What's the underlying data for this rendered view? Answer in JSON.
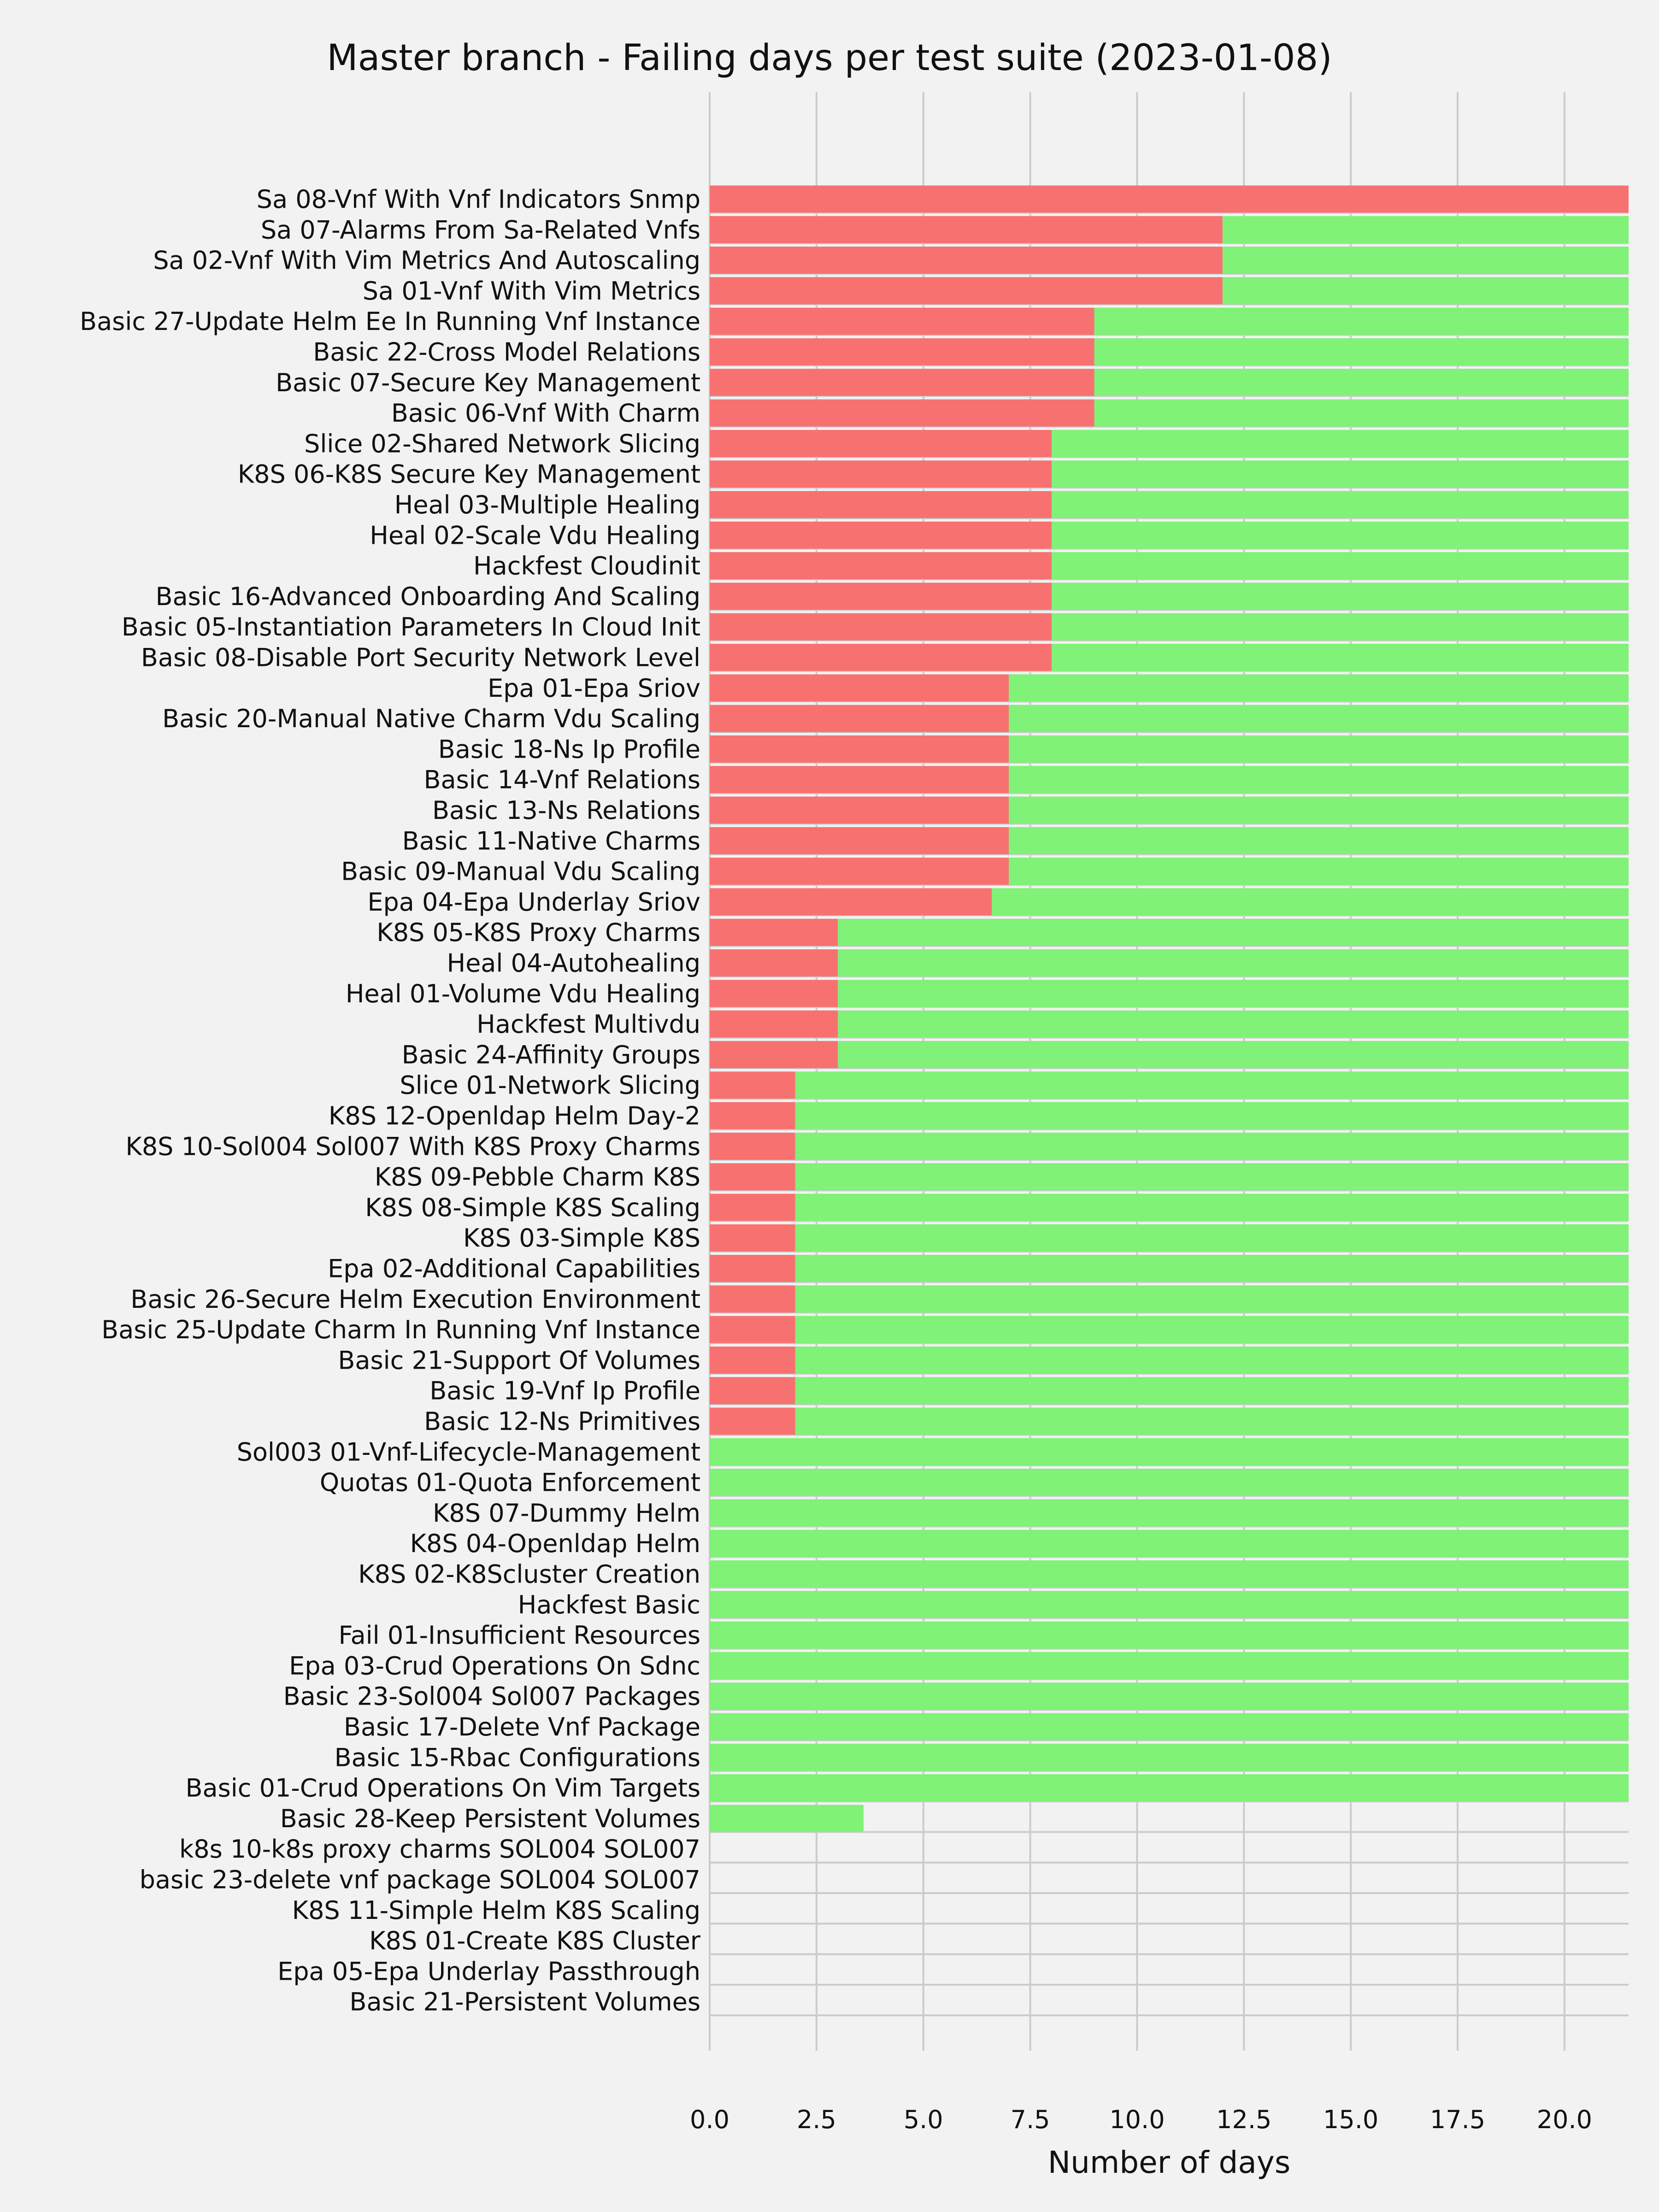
{
  "chart_data": {
    "type": "bar",
    "orientation": "horizontal",
    "stacked": true,
    "title": "Master branch - Failing days per test suite (2023-01-08)",
    "xlabel": "Number of days",
    "ylabel": "",
    "xlim": [
      0,
      21.5
    ],
    "xticks": [
      "0.0",
      "2.5",
      "5.0",
      "7.5",
      "10.0",
      "12.5",
      "15.0",
      "17.5",
      "20.0"
    ],
    "grid": "vertical",
    "categories": [
      "Sa 08-Vnf With Vnf Indicators Snmp",
      "Sa 07-Alarms From Sa-Related Vnfs",
      "Sa 02-Vnf With Vim Metrics And Autoscaling",
      "Sa 01-Vnf With Vim Metrics",
      "Basic 27-Update Helm Ee In Running Vnf Instance",
      "Basic 22-Cross Model Relations",
      "Basic 07-Secure Key Management",
      "Basic 06-Vnf With Charm",
      "Slice 02-Shared Network Slicing",
      "K8S 06-K8S Secure Key Management",
      "Heal 03-Multiple Healing",
      "Heal 02-Scale Vdu Healing",
      "Hackfest Cloudinit",
      "Basic 16-Advanced Onboarding And Scaling",
      "Basic 05-Instantiation Parameters In Cloud Init",
      "Basic 08-Disable Port Security Network Level",
      "Epa 01-Epa Sriov",
      "Basic 20-Manual Native Charm Vdu Scaling",
      "Basic 18-Ns Ip Profile",
      "Basic 14-Vnf Relations",
      "Basic 13-Ns Relations",
      "Basic 11-Native Charms",
      "Basic 09-Manual Vdu Scaling",
      "Epa 04-Epa Underlay Sriov",
      "K8S 05-K8S Proxy Charms",
      "Heal 04-Autohealing",
      "Heal 01-Volume Vdu Healing",
      "Hackfest Multivdu",
      "Basic 24-Affinity Groups",
      "Slice 01-Network Slicing",
      "K8S 12-Openldap Helm Day-2",
      "K8S 10-Sol004 Sol007 With K8S Proxy Charms",
      "K8S 09-Pebble Charm K8S",
      "K8S 08-Simple K8S Scaling",
      "K8S 03-Simple K8S",
      "Epa 02-Additional Capabilities",
      "Basic 26-Secure Helm Execution Environment",
      "Basic 25-Update Charm In Running Vnf Instance",
      "Basic 21-Support Of Volumes",
      "Basic 19-Vnf Ip Profile",
      "Basic 12-Ns Primitives",
      "Sol003 01-Vnf-Lifecycle-Management",
      "Quotas 01-Quota Enforcement",
      "K8S 07-Dummy Helm",
      "K8S 04-Openldap Helm",
      "K8S 02-K8Scluster Creation",
      "Hackfest Basic",
      "Fail 01-Insufficient Resources",
      "Epa 03-Crud Operations On Sdnc",
      "Basic 23-Sol004 Sol007 Packages",
      "Basic 17-Delete Vnf Package",
      "Basic 15-Rbac Configurations",
      "Basic 01-Crud Operations On Vim Targets",
      "Basic 28-Keep Persistent Volumes",
      "k8s 10-k8s proxy charms SOL004 SOL007",
      "basic 23-delete vnf package SOL004 SOL007",
      "K8S 11-Simple Helm K8S Scaling",
      "K8S 01-Create K8S Cluster",
      "Epa 05-Epa Underlay Passthrough",
      "Basic 21-Persistent Volumes"
    ],
    "series": [
      {
        "color": "#f87171",
        "values": [
          21.5,
          12,
          12,
          12,
          9,
          9,
          9,
          9,
          8,
          8,
          8,
          8,
          8,
          8,
          8,
          8,
          7,
          7,
          7,
          7,
          7,
          7,
          7,
          6.6,
          3,
          3,
          3,
          3,
          3,
          2,
          2,
          2,
          2,
          2,
          2,
          2,
          2,
          2,
          2,
          2,
          2,
          0,
          0,
          0,
          0,
          0,
          0,
          0,
          0,
          0,
          0,
          0,
          0,
          0,
          0,
          0,
          0,
          0,
          0,
          0
        ]
      },
      {
        "color": "#7ff277",
        "values": [
          0,
          9.5,
          9.5,
          9.5,
          12.5,
          12.5,
          12.5,
          12.5,
          13.5,
          13.5,
          13.5,
          13.5,
          13.5,
          13.5,
          13.5,
          13.5,
          14.5,
          14.5,
          14.5,
          14.5,
          14.5,
          14.5,
          14.5,
          14.9,
          18.5,
          18.5,
          18.5,
          18.5,
          18.5,
          19.5,
          19.5,
          19.5,
          19.5,
          19.5,
          19.5,
          19.5,
          19.5,
          19.5,
          19.5,
          19.5,
          19.5,
          21.5,
          21.5,
          21.5,
          21.5,
          21.5,
          21.5,
          21.5,
          21.5,
          21.5,
          21.5,
          21.5,
          21.5,
          3.6,
          0,
          0,
          0,
          0,
          0,
          0
        ]
      }
    ]
  }
}
